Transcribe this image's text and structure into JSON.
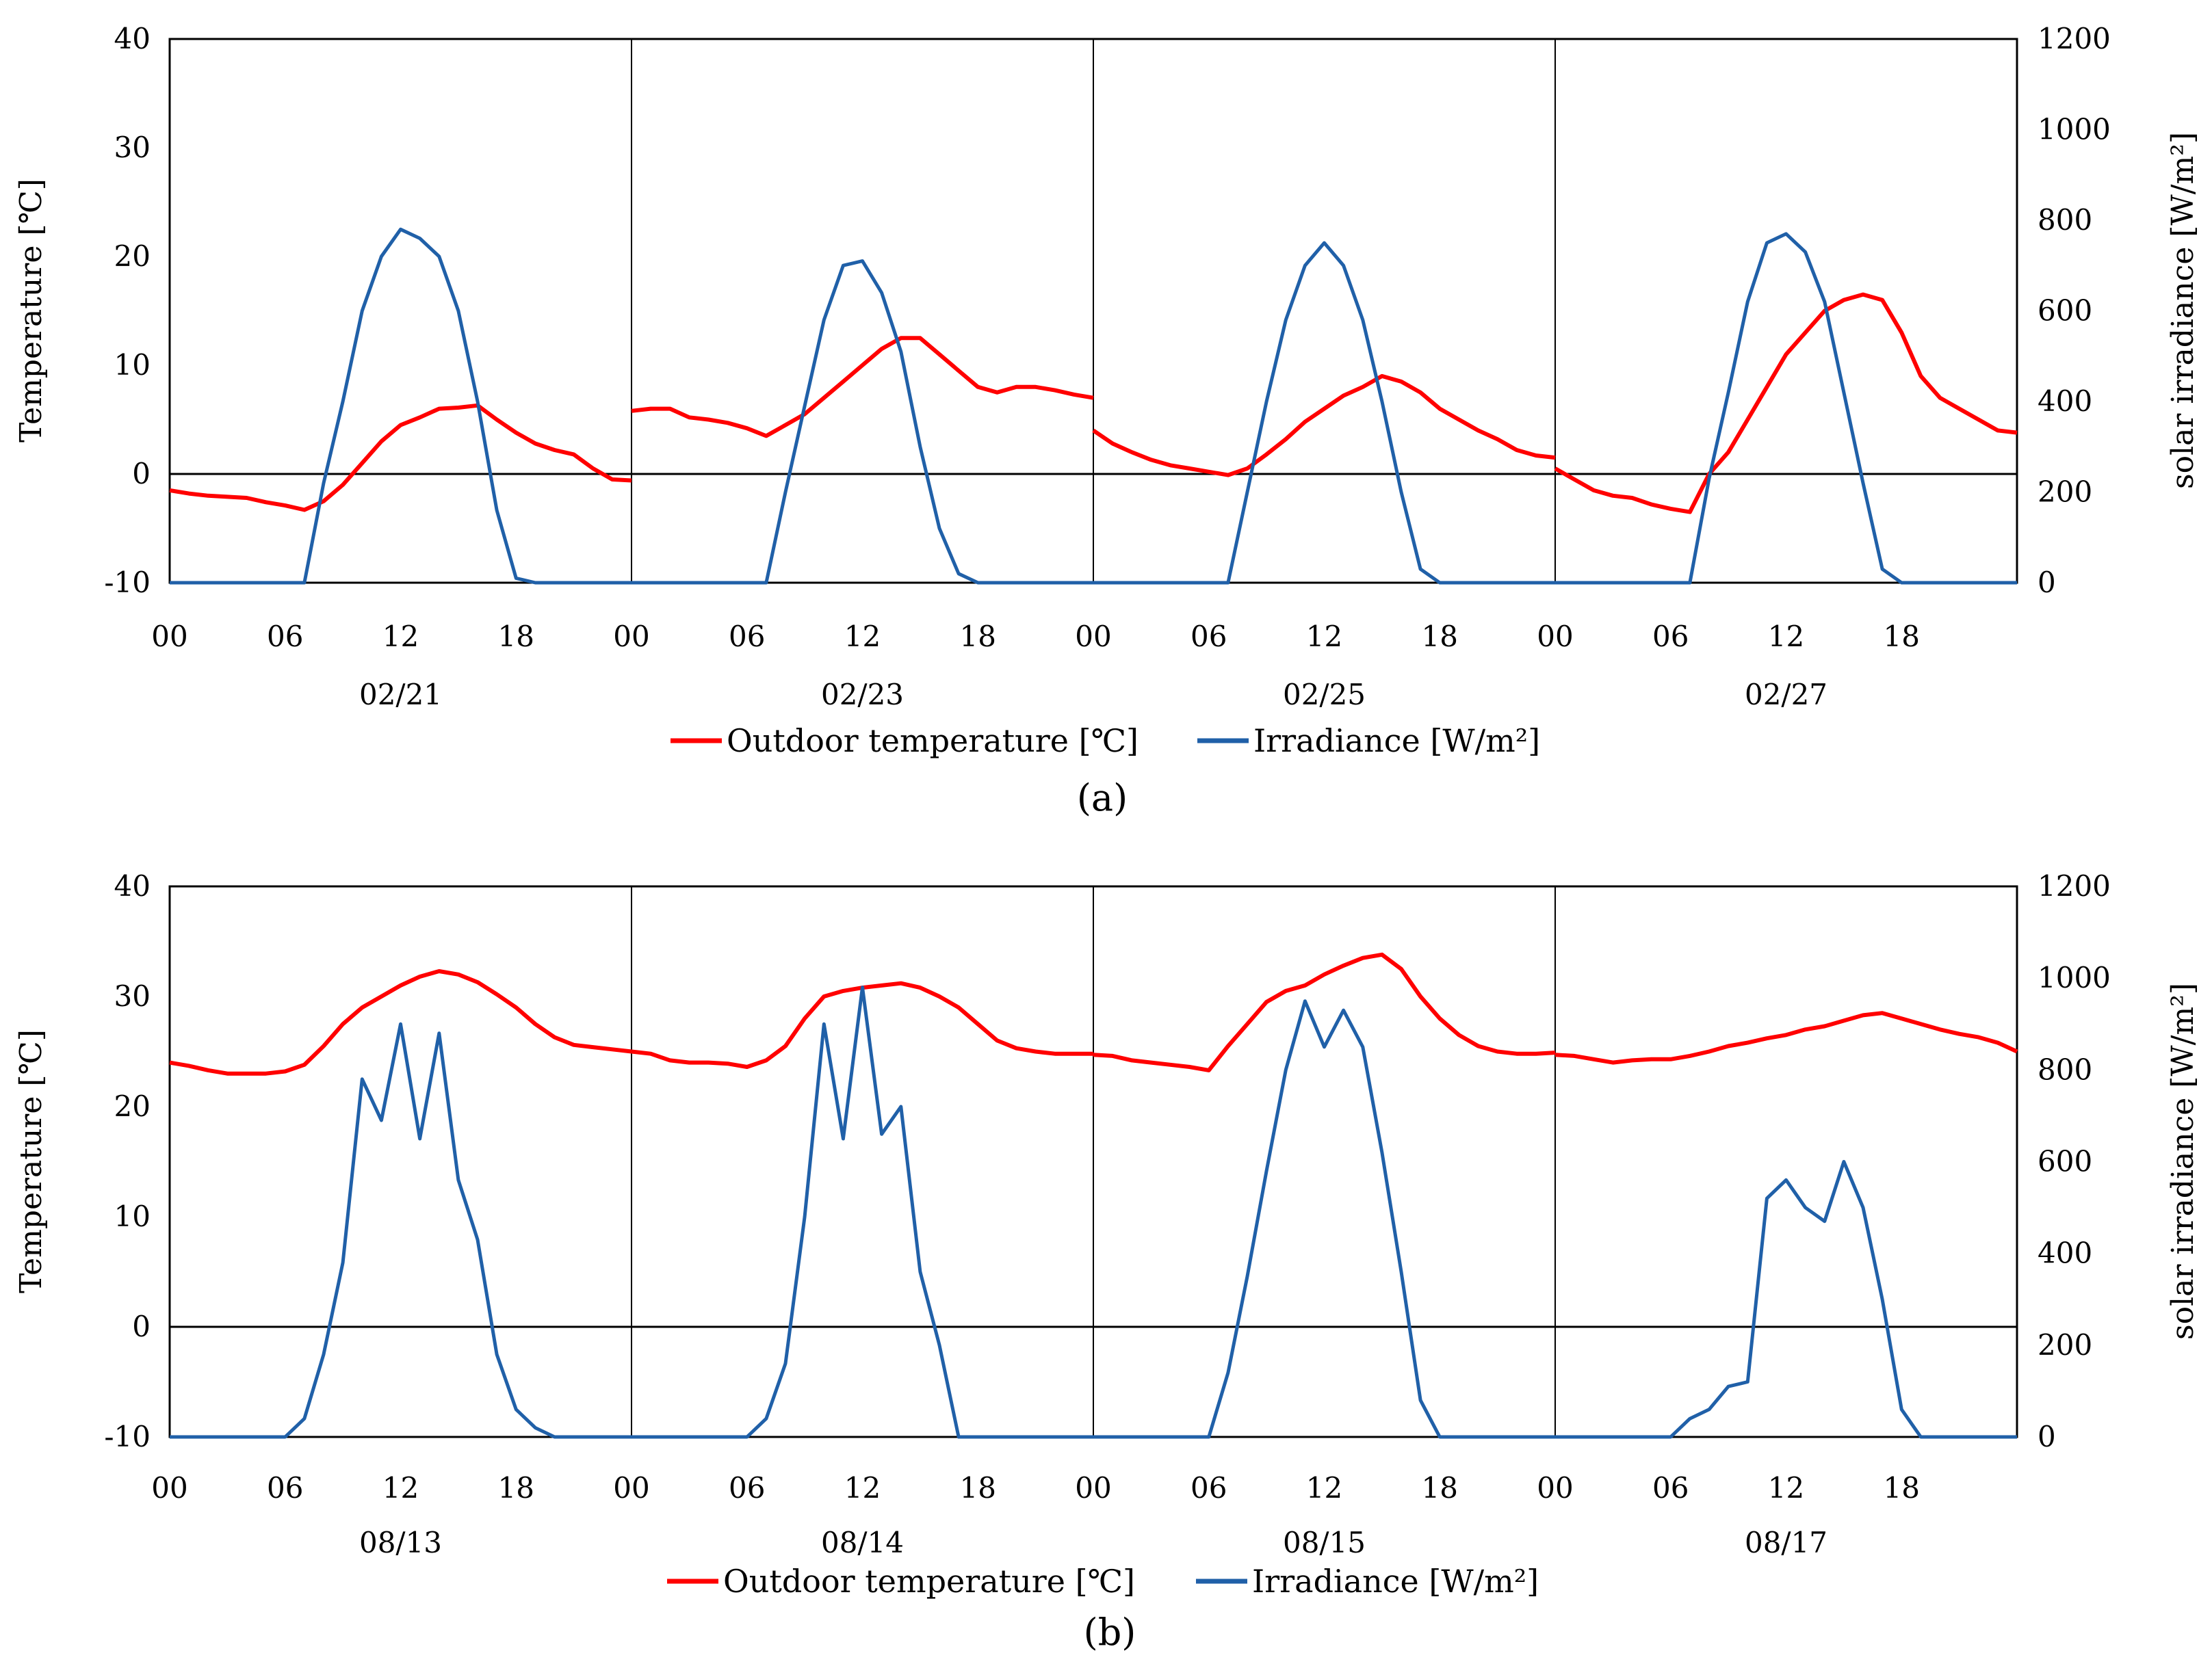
{
  "colors": {
    "temperature": "#ff0000",
    "irradiance": "#2060a8",
    "axis": "#000000"
  },
  "chart_data": [
    {
      "type": "line",
      "panel_label": "(a)",
      "ylabel_left": "Temperature [℃]",
      "ylabel_right": "solar irradiance [W/m²]",
      "ylim_left": [
        -10,
        40
      ],
      "ylim_right": [
        0,
        1200
      ],
      "yticks_left": [
        "40",
        "30",
        "20",
        "10",
        "0",
        "-10"
      ],
      "yticks_right": [
        "1200",
        "1000",
        "800",
        "600",
        "400",
        "200",
        "0"
      ],
      "hour_ticks": [
        "00",
        "06",
        "12",
        "18"
      ],
      "days": [
        "02/21",
        "02/23",
        "02/25",
        "02/27"
      ],
      "legend": [
        "Outdoor temperature [℃]",
        "Irradiance [W/m²]"
      ],
      "hours": [
        0,
        1,
        2,
        3,
        4,
        5,
        6,
        7,
        8,
        9,
        10,
        11,
        12,
        13,
        14,
        15,
        16,
        17,
        18,
        19,
        20,
        21,
        22,
        23,
        24
      ],
      "series": [
        {
          "name": "Outdoor temperature [℃]",
          "values": [
            [
              -1.5,
              -1.8,
              -2,
              -2.1,
              -2.2,
              -2.6,
              -2.9,
              -3.3,
              -2.5,
              -1,
              1,
              3,
              4.5,
              5.2,
              6,
              6.1,
              6.3,
              5,
              3.8,
              2.8,
              2.2,
              1.8,
              0.5,
              -0.5,
              -0.6
            ],
            [
              5.8,
              6,
              6,
              5.2,
              5,
              4.7,
              4.2,
              3.5,
              4.5,
              5.5,
              7,
              8.5,
              10,
              11.5,
              12.5,
              12.5,
              11,
              9.5,
              8,
              7.5,
              8,
              8,
              7.7,
              7.3,
              7
            ],
            [
              4,
              2.8,
              2,
              1.3,
              0.8,
              0.5,
              0.2,
              -0.1,
              0.5,
              1.8,
              3.2,
              4.8,
              6,
              7.2,
              8,
              9,
              8.5,
              7.5,
              6,
              5,
              4,
              3.2,
              2.2,
              1.7,
              1.5
            ],
            [
              0.5,
              -0.5,
              -1.5,
              -2,
              -2.2,
              -2.8,
              -3.2,
              -3.5,
              0,
              2,
              5,
              8,
              11,
              13,
              15,
              16,
              16.5,
              16,
              13,
              9,
              7,
              6,
              5,
              4,
              3.8
            ]
          ]
        },
        {
          "name": "Irradiance [W/m²]",
          "values": [
            [
              0,
              0,
              0,
              0,
              0,
              0,
              0,
              0,
              220,
              400,
              600,
              720,
              780,
              760,
              720,
              600,
              400,
              160,
              10,
              0,
              0,
              0,
              0,
              0,
              0
            ],
            [
              0,
              0,
              0,
              0,
              0,
              0,
              0,
              0,
              200,
              390,
              580,
              700,
              710,
              640,
              510,
              300,
              120,
              20,
              0,
              0,
              0,
              0,
              0,
              0,
              0
            ],
            [
              0,
              0,
              0,
              0,
              0,
              0,
              0,
              0,
              200,
              400,
              580,
              700,
              750,
              700,
              580,
              400,
              200,
              30,
              0,
              0,
              0,
              0,
              0,
              0,
              0
            ],
            [
              0,
              0,
              0,
              0,
              0,
              0,
              0,
              0,
              230,
              420,
              620,
              750,
              770,
              730,
              620,
              420,
              220,
              30,
              0,
              0,
              0,
              0,
              0,
              0,
              0
            ]
          ]
        }
      ]
    },
    {
      "type": "line",
      "panel_label": "(b)",
      "ylabel_left": "Temperature [℃]",
      "ylabel_right": "solar irradiance [W/m²]",
      "ylim_left": [
        -10,
        40
      ],
      "ylim_right": [
        0,
        1200
      ],
      "yticks_left": [
        "40",
        "30",
        "20",
        "10",
        "0",
        "-10"
      ],
      "yticks_right": [
        "1200",
        "1000",
        "800",
        "600",
        "400",
        "200",
        "0"
      ],
      "hour_ticks": [
        "00",
        "06",
        "12",
        "18"
      ],
      "days": [
        "08/13",
        "08/14",
        "08/15",
        "08/17"
      ],
      "legend": [
        "Outdoor temperature [℃]",
        "Irradiance [W/m²]"
      ],
      "hours": [
        0,
        1,
        2,
        3,
        4,
        5,
        6,
        7,
        8,
        9,
        10,
        11,
        12,
        13,
        14,
        15,
        16,
        17,
        18,
        19,
        20,
        21,
        22,
        23,
        24
      ],
      "series": [
        {
          "name": "Outdoor temperature [℃]",
          "values": [
            [
              24,
              23.7,
              23.3,
              23,
              23,
              23,
              23.2,
              23.8,
              25.5,
              27.5,
              29,
              30,
              31,
              31.8,
              32.3,
              32,
              31.3,
              30.2,
              29,
              27.5,
              26.3,
              25.6,
              25.4,
              25.2,
              25
            ],
            [
              25,
              24.8,
              24.2,
              24,
              24,
              23.9,
              23.6,
              24.2,
              25.5,
              28,
              30,
              30.5,
              30.8,
              31,
              31.2,
              30.8,
              30,
              29,
              27.5,
              26,
              25.3,
              25,
              24.8,
              24.8,
              24.8
            ],
            [
              24.7,
              24.6,
              24.2,
              24,
              23.8,
              23.6,
              23.3,
              25.5,
              27.5,
              29.5,
              30.5,
              31,
              32,
              32.8,
              33.5,
              33.8,
              32.5,
              30,
              28,
              26.5,
              25.5,
              25,
              24.8,
              24.8,
              24.9
            ],
            [
              24.7,
              24.6,
              24.3,
              24,
              24.2,
              24.3,
              24.3,
              24.6,
              25,
              25.5,
              25.8,
              26.2,
              26.5,
              27,
              27.3,
              27.8,
              28.3,
              28.5,
              28,
              27.5,
              27,
              26.6,
              26.3,
              25.8,
              25
            ]
          ]
        },
        {
          "name": "Irradiance [W/m²]",
          "values": [
            [
              0,
              0,
              0,
              0,
              0,
              0,
              0,
              40,
              180,
              380,
              780,
              690,
              900,
              650,
              880,
              560,
              430,
              180,
              60,
              20,
              0,
              0,
              0,
              0,
              0
            ],
            [
              0,
              0,
              0,
              0,
              0,
              0,
              0,
              40,
              160,
              480,
              900,
              650,
              980,
              660,
              720,
              360,
              200,
              0,
              0,
              0,
              0,
              0,
              0,
              0,
              0
            ],
            [
              0,
              0,
              0,
              0,
              0,
              0,
              0,
              140,
              350,
              580,
              800,
              950,
              850,
              930,
              850,
              620,
              360,
              80,
              0,
              0,
              0,
              0,
              0,
              0,
              0
            ],
            [
              0,
              0,
              0,
              0,
              0,
              0,
              0,
              40,
              60,
              110,
              120,
              520,
              560,
              500,
              470,
              600,
              500,
              300,
              60,
              0,
              0,
              0,
              0,
              0,
              0
            ]
          ]
        }
      ]
    }
  ]
}
